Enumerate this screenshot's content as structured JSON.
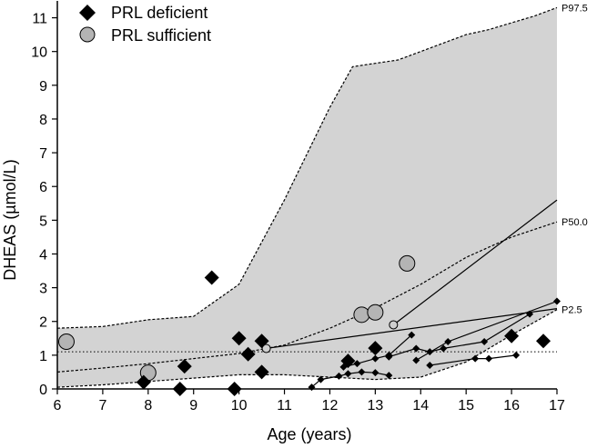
{
  "chart_data": {
    "type": "scatter",
    "xlabel": "Age  (years)",
    "ylabel": "DHEAS (µmol/L)",
    "xlim": [
      6,
      17
    ],
    "ylim": [
      0,
      11.5
    ],
    "xticks": [
      "6",
      "7",
      "8",
      "9",
      "10",
      "11",
      "12",
      "13",
      "14",
      "15",
      "16",
      "17"
    ],
    "yticks": [
      "0",
      "1",
      "2",
      "3",
      "4",
      "5",
      "6",
      "7",
      "8",
      "9",
      "10",
      "11"
    ],
    "legend": [
      {
        "name": "PRL deficient",
        "marker": "diamond",
        "color": "#000000"
      },
      {
        "name": "PRL sufficient",
        "marker": "circle",
        "color": "#b4b4b4"
      }
    ],
    "reference_band": {
      "fill": "#d3d3d3",
      "p97_5": {
        "label": "P97.5",
        "x": [
          6,
          7,
          8,
          9,
          10,
          11,
          12,
          12.5,
          13,
          13.5,
          14,
          14.5,
          15,
          15.5,
          16,
          16.5,
          17
        ],
        "y": [
          1.8,
          1.85,
          2.05,
          2.15,
          3.1,
          5.6,
          8.35,
          9.55,
          9.65,
          9.75,
          10.0,
          10.25,
          10.5,
          10.65,
          10.85,
          11.05,
          11.3
        ]
      },
      "p50": {
        "label": "P50.0",
        "x": [
          6,
          7,
          8,
          9,
          10,
          11,
          12,
          13,
          14,
          15,
          16,
          17
        ],
        "y": [
          0.5,
          0.62,
          0.75,
          0.9,
          1.05,
          1.3,
          1.8,
          2.4,
          3.1,
          3.9,
          4.5,
          4.95
        ]
      },
      "p2_5": {
        "label": "P2.5",
        "x": [
          6,
          7,
          8,
          9,
          10,
          11,
          12,
          13,
          14,
          15,
          16,
          17
        ],
        "y": [
          0.05,
          0.12,
          0.22,
          0.32,
          0.42,
          0.42,
          0.35,
          0.28,
          0.35,
          0.8,
          1.6,
          2.35
        ]
      }
    },
    "reference_line_y": 1.1,
    "series": [
      {
        "name": "PRL deficient",
        "points": [
          {
            "x": 7.9,
            "y": 0.2
          },
          {
            "x": 8.7,
            "y": 0.0
          },
          {
            "x": 8.8,
            "y": 0.67
          },
          {
            "x": 9.4,
            "y": 3.3
          },
          {
            "x": 9.9,
            "y": 0.0
          },
          {
            "x": 10.0,
            "y": 1.5
          },
          {
            "x": 10.2,
            "y": 1.03
          },
          {
            "x": 10.5,
            "y": 1.42
          },
          {
            "x": 10.5,
            "y": 0.5
          },
          {
            "x": 12.4,
            "y": 0.83
          },
          {
            "x": 13.0,
            "y": 1.21
          },
          {
            "x": 16.0,
            "y": 1.57
          },
          {
            "x": 16.7,
            "y": 1.42
          }
        ]
      },
      {
        "name": "PRL sufficient",
        "points": [
          {
            "x": 6.2,
            "y": 1.4
          },
          {
            "x": 8.0,
            "y": 0.48
          },
          {
            "x": 12.7,
            "y": 2.2
          },
          {
            "x": 13.0,
            "y": 2.27
          },
          {
            "x": 13.7,
            "y": 3.72
          }
        ]
      }
    ],
    "trajectories": [
      {
        "marker": "circle",
        "x": [
          10.6,
          17.0
        ],
        "y": [
          1.2,
          2.38
        ]
      },
      {
        "marker": "circle",
        "x": [
          13.4,
          17.0
        ],
        "y": [
          1.9,
          5.6
        ]
      },
      {
        "marker": "diamond",
        "x": [
          11.6,
          11.8,
          12.2,
          12.4,
          12.7,
          13.0,
          13.3
        ],
        "y": [
          0.05,
          0.28,
          0.38,
          0.45,
          0.5,
          0.48,
          0.4
        ]
      },
      {
        "marker": "diamond",
        "x": [
          12.3,
          12.6,
          13.0,
          13.3,
          13.8
        ],
        "y": [
          0.65,
          0.75,
          0.9,
          1.0,
          1.6
        ]
      },
      {
        "marker": "diamond",
        "x": [
          13.3,
          13.9,
          14.2,
          14.5,
          15.4,
          16.4
        ],
        "y": [
          0.95,
          1.2,
          1.1,
          1.2,
          1.4,
          2.22
        ]
      },
      {
        "marker": "diamond",
        "x": [
          13.9,
          14.6,
          17.0
        ],
        "y": [
          0.85,
          1.4,
          2.6
        ]
      },
      {
        "marker": "diamond",
        "x": [
          14.2,
          15.2,
          15.5,
          16.1
        ],
        "y": [
          0.7,
          0.9,
          0.9,
          1.0
        ]
      }
    ]
  }
}
